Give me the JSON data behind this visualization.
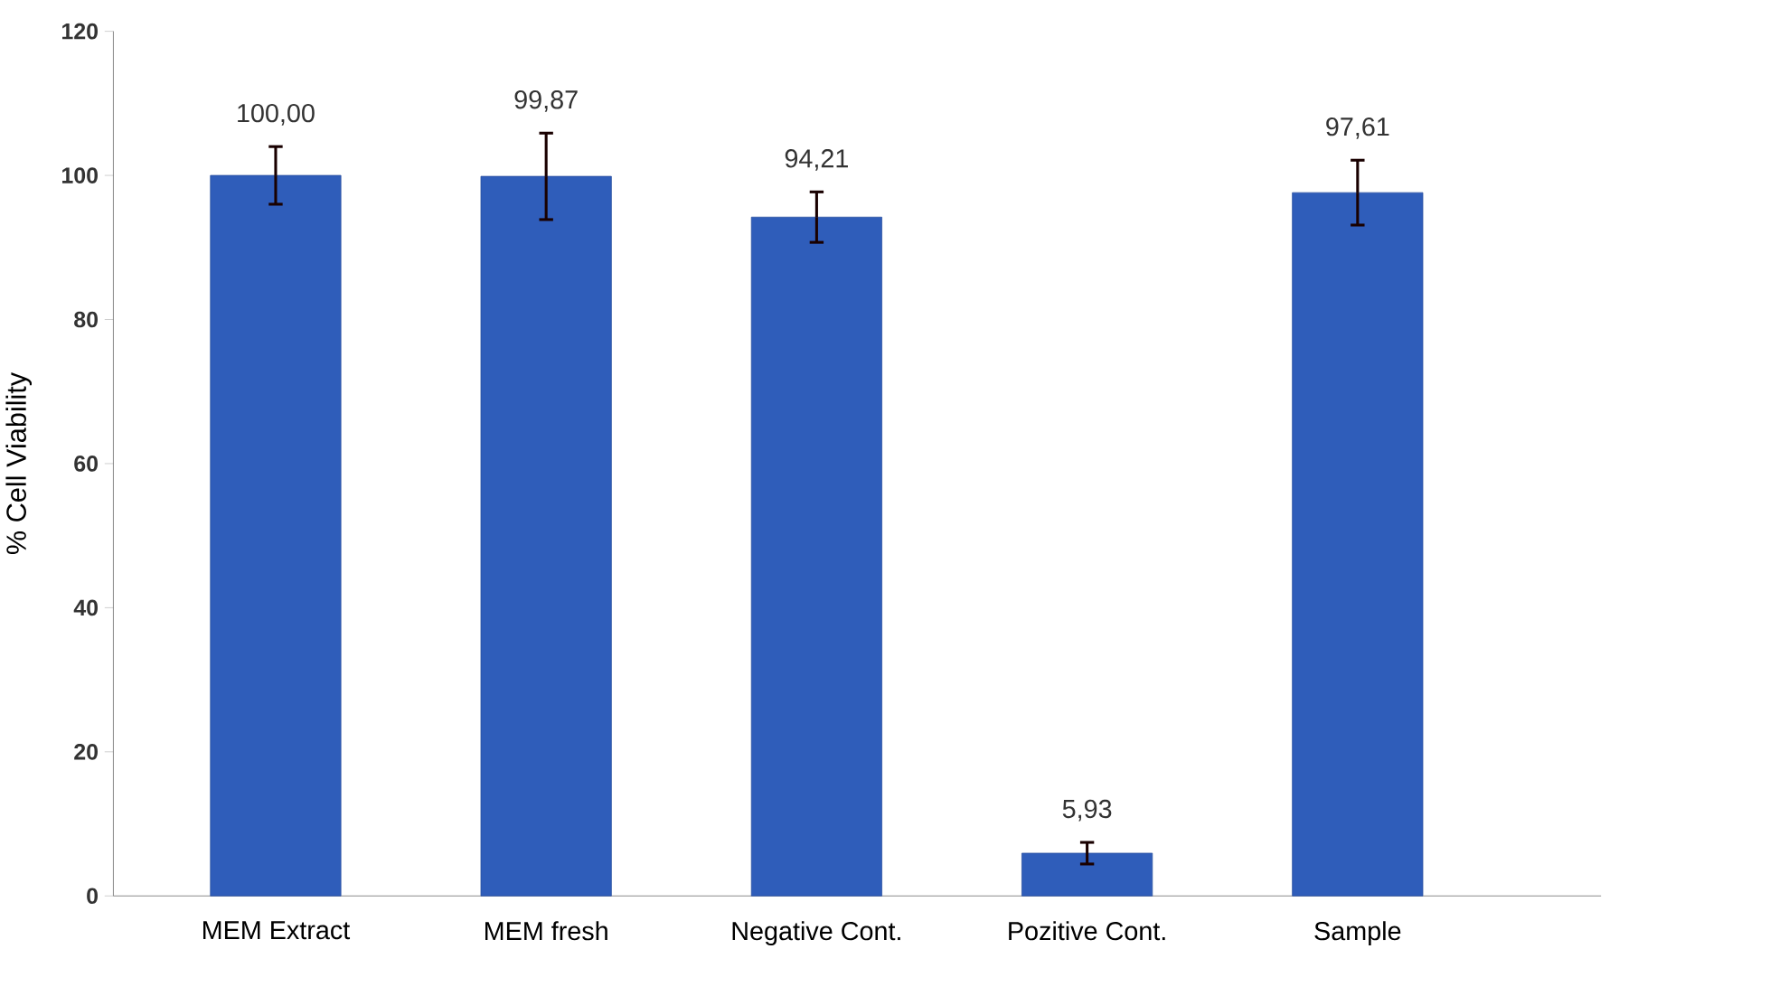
{
  "chart_data": {
    "type": "bar",
    "ylabel": "% Cell Viability",
    "categories": [
      "MEM Extract",
      "MEM fresh",
      "Negative Cont.",
      "Pozitive Cont.",
      "Sample"
    ],
    "values": [
      100.0,
      99.87,
      94.21,
      5.93,
      97.61
    ],
    "value_labels": [
      "100,00",
      "99,87",
      "94,21",
      "5,93",
      "97,61"
    ],
    "errors": [
      4,
      6,
      3.5,
      1.5,
      4.5
    ],
    "color": "#2f5dba",
    "ylim": [
      0,
      120
    ],
    "yticks": [
      0,
      20,
      40,
      60,
      80,
      100,
      120
    ],
    "grid": false
  }
}
